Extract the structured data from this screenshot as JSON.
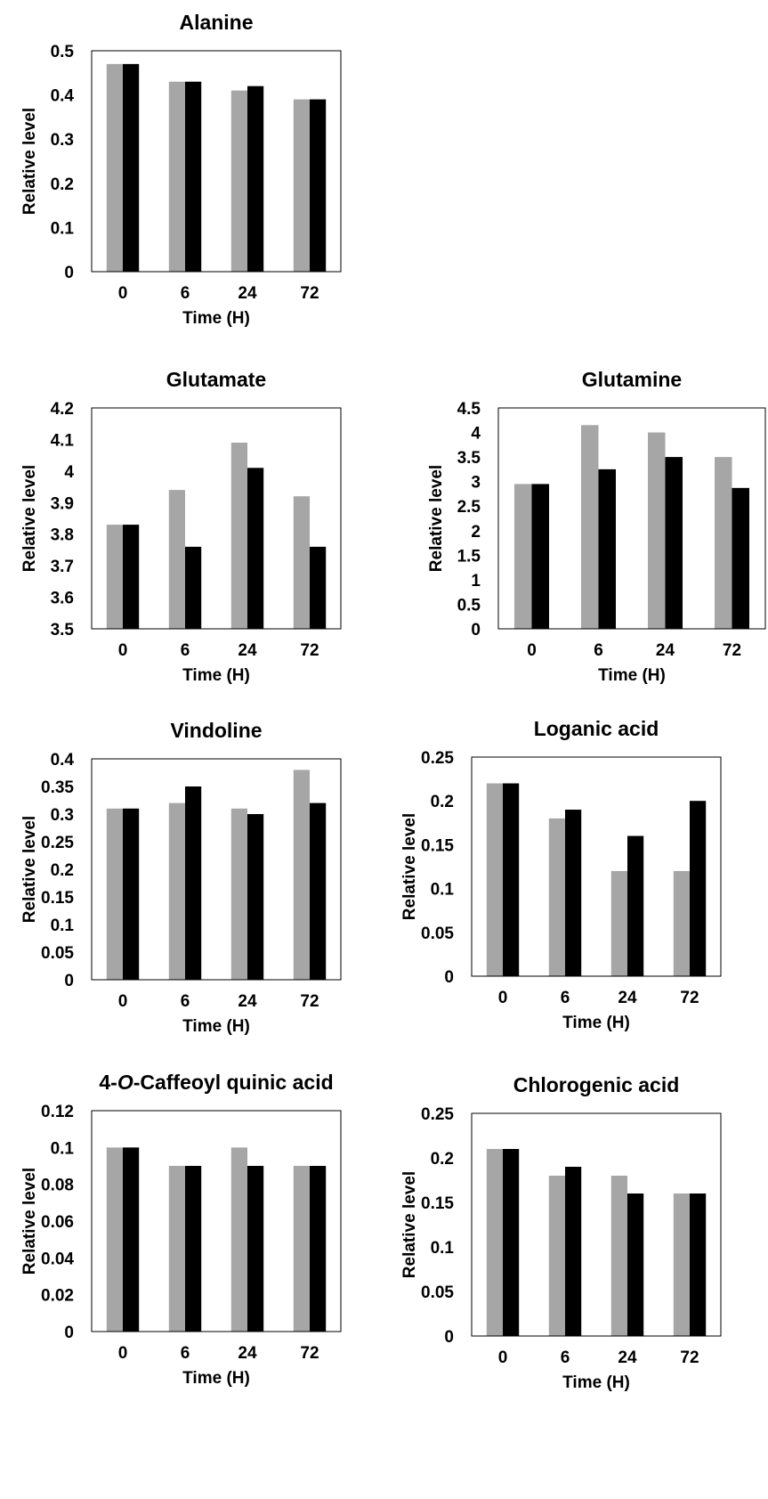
{
  "chart_data": [
    {
      "type": "bar",
      "title": "Alanine",
      "xlabel": "Time (H)",
      "ylabel": "Relative level",
      "categories": [
        "0",
        "6",
        "24",
        "72"
      ],
      "ylim": [
        0,
        0.5
      ],
      "yticks": [
        "0",
        "0.1",
        "0.2",
        "0.3",
        "0.4",
        "0.5"
      ],
      "series": [
        {
          "color": "#a6a6a6",
          "values": [
            0.47,
            0.43,
            0.41,
            0.39
          ]
        },
        {
          "color": "#000000",
          "values": [
            0.47,
            0.43,
            0.42,
            0.39
          ]
        }
      ]
    },
    {
      "type": "bar",
      "title": "Glutamate",
      "xlabel": "Time (H)",
      "ylabel": "Relative level",
      "categories": [
        "0",
        "6",
        "24",
        "72"
      ],
      "ylim": [
        3.5,
        4.2
      ],
      "yticks": [
        "3.5",
        "3.6",
        "3.7",
        "3.8",
        "3.9",
        "4",
        "4.1",
        "4.2"
      ],
      "series": [
        {
          "color": "#a6a6a6",
          "values": [
            3.83,
            3.94,
            4.09,
            3.92
          ]
        },
        {
          "color": "#000000",
          "values": [
            3.83,
            3.76,
            4.01,
            3.76
          ]
        }
      ]
    },
    {
      "type": "bar",
      "title": "Glutamine",
      "xlabel": "Time (H)",
      "ylabel": "Relative level",
      "categories": [
        "0",
        "6",
        "24",
        "72"
      ],
      "ylim": [
        0,
        4.5
      ],
      "yticks": [
        "0",
        "0.5",
        "1",
        "1.5",
        "2",
        "2.5",
        "3",
        "3.5",
        "4",
        "4.5"
      ],
      "series": [
        {
          "color": "#a6a6a6",
          "values": [
            2.95,
            4.15,
            4.0,
            3.5
          ]
        },
        {
          "color": "#000000",
          "values": [
            2.95,
            3.25,
            3.5,
            2.87
          ]
        }
      ]
    },
    {
      "type": "bar",
      "title": "Vindoline",
      "xlabel": "Time (H)",
      "ylabel": "Relative level",
      "categories": [
        "0",
        "6",
        "24",
        "72"
      ],
      "ylim": [
        0,
        0.4
      ],
      "yticks": [
        "0",
        "0.05",
        "0.1",
        "0.15",
        "0.2",
        "0.25",
        "0.3",
        "0.35",
        "0.4"
      ],
      "series": [
        {
          "color": "#a6a6a6",
          "values": [
            0.31,
            0.32,
            0.31,
            0.38
          ]
        },
        {
          "color": "#000000",
          "values": [
            0.31,
            0.35,
            0.3,
            0.32
          ]
        }
      ]
    },
    {
      "type": "bar",
      "title": "Loganic acid",
      "xlabel": "Time (H)",
      "ylabel": "Relative level",
      "categories": [
        "0",
        "6",
        "24",
        "72"
      ],
      "ylim": [
        0,
        0.25
      ],
      "yticks": [
        "0",
        "0.05",
        "0.1",
        "0.15",
        "0.2",
        "0.25"
      ],
      "series": [
        {
          "color": "#a6a6a6",
          "values": [
            0.22,
            0.18,
            0.12,
            0.12
          ]
        },
        {
          "color": "#000000",
          "values": [
            0.22,
            0.19,
            0.16,
            0.2
          ]
        }
      ]
    },
    {
      "type": "bar",
      "title": "4-O-Caffeoyl quinic acid",
      "xlabel": "Time (H)",
      "ylabel": "Relative level",
      "categories": [
        "0",
        "6",
        "24",
        "72"
      ],
      "ylim": [
        0,
        0.12
      ],
      "yticks": [
        "0",
        "0.02",
        "0.04",
        "0.06",
        "0.08",
        "0.1",
        "0.12"
      ],
      "series": [
        {
          "color": "#a6a6a6",
          "values": [
            0.1,
            0.09,
            0.1,
            0.09
          ]
        },
        {
          "color": "#000000",
          "values": [
            0.1,
            0.09,
            0.09,
            0.09
          ]
        }
      ]
    },
    {
      "type": "bar",
      "title": "Chlorogenic acid",
      "xlabel": "Time (H)",
      "ylabel": "Relative level",
      "categories": [
        "0",
        "6",
        "24",
        "72"
      ],
      "ylim": [
        0,
        0.25
      ],
      "yticks": [
        "0",
        "0.05",
        "0.1",
        "0.15",
        "0.2",
        "0.25"
      ],
      "series": [
        {
          "color": "#a6a6a6",
          "values": [
            0.21,
            0.18,
            0.18,
            0.16
          ]
        },
        {
          "color": "#000000",
          "values": [
            0.21,
            0.19,
            0.16,
            0.16
          ]
        }
      ]
    }
  ]
}
